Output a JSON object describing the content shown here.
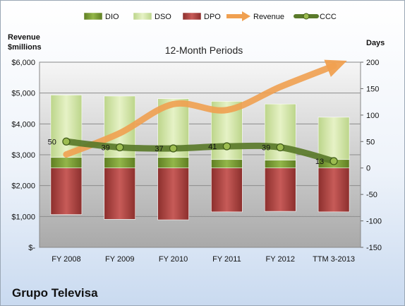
{
  "company": "Grupo Televisa",
  "chart_data": {
    "type": "bar",
    "title": "12-Month Periods",
    "ylabel_left": "Revenue $millions",
    "ylabel_right": "Days",
    "categories": [
      "FY 2008",
      "FY 2009",
      "FY 2010",
      "FY 2011",
      "FY 2012",
      "TTM 3-2013"
    ],
    "left_axis": {
      "range": [
        0,
        6000
      ],
      "ticks": [
        0,
        1000,
        2000,
        3000,
        4000,
        5000,
        6000
      ],
      "tick_labels": [
        "$-",
        "$1,000",
        "$2,000",
        "$3,000",
        "$4,000",
        "$5,000",
        "$6,000"
      ]
    },
    "right_axis": {
      "range": [
        -150,
        200
      ],
      "ticks": [
        -150,
        -100,
        -50,
        0,
        50,
        100,
        150,
        200
      ],
      "tick_labels": [
        "-150",
        "-100",
        "-50",
        "0",
        "50",
        "100",
        "150",
        "200"
      ]
    },
    "grid": true,
    "legend_position": "top",
    "legend": [
      "DIO",
      "DSO",
      "DPO",
      "Revenue",
      "CCC"
    ],
    "series": [
      {
        "name": "DIO",
        "axis": "right",
        "values": [
          20,
          20,
          20,
          16,
          15,
          16
        ],
        "color": "#7a9c30"
      },
      {
        "name": "DSO",
        "axis": "right",
        "values": [
          118,
          116,
          111,
          110,
          106,
          80
        ],
        "color": "#d7e8a8"
      },
      {
        "name": "DPO",
        "axis": "right",
        "values": [
          -88,
          -97,
          -98,
          -83,
          -82,
          -83
        ],
        "color": "#b24a48"
      },
      {
        "name": "Revenue",
        "axis": "left",
        "values": [
          3010,
          3700,
          4640,
          4450,
          5200,
          5880
        ],
        "color": "#f0a050"
      },
      {
        "name": "CCC",
        "axis": "right",
        "values": [
          50,
          39,
          37,
          41,
          39,
          13
        ],
        "color": "#5a7a2a"
      }
    ],
    "data_labels": [
      "50",
      "39",
      "37",
      "41",
      "39",
      "13"
    ]
  }
}
